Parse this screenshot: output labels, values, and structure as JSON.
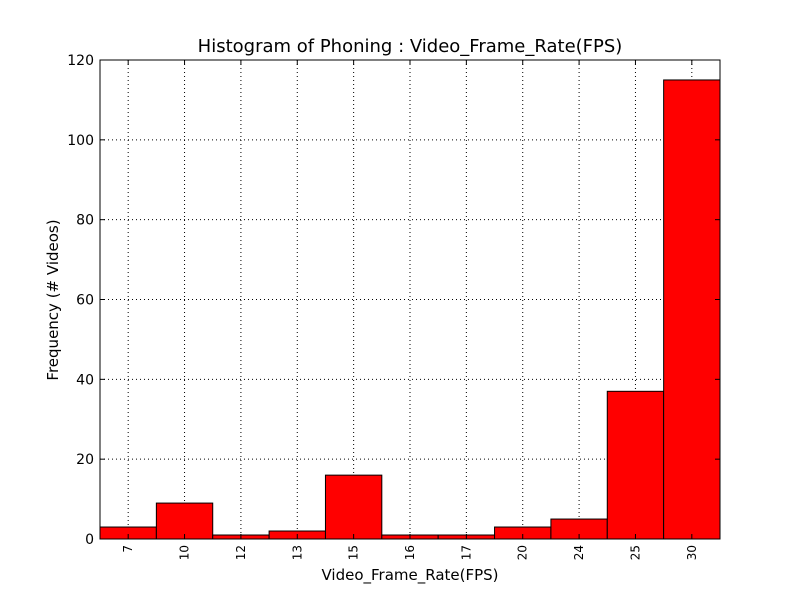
{
  "chart_data": {
    "type": "bar",
    "title": "Histogram of Phoning : Video_Frame_Rate(FPS)",
    "xlabel": "Video_Frame_Rate(FPS)",
    "ylabel": "Frequency (# Videos)",
    "categories": [
      "7",
      "10",
      "12",
      "13",
      "15",
      "16",
      "17",
      "20",
      "24",
      "25",
      "30"
    ],
    "values": [
      3,
      9,
      1,
      2,
      16,
      1,
      1,
      3,
      5,
      37,
      115
    ],
    "ylim": [
      0,
      120
    ],
    "yticks": [
      0,
      20,
      40,
      60,
      80,
      100,
      120
    ],
    "grid": true,
    "bar_color": "#ff0000",
    "edge_color": "#000000"
  }
}
